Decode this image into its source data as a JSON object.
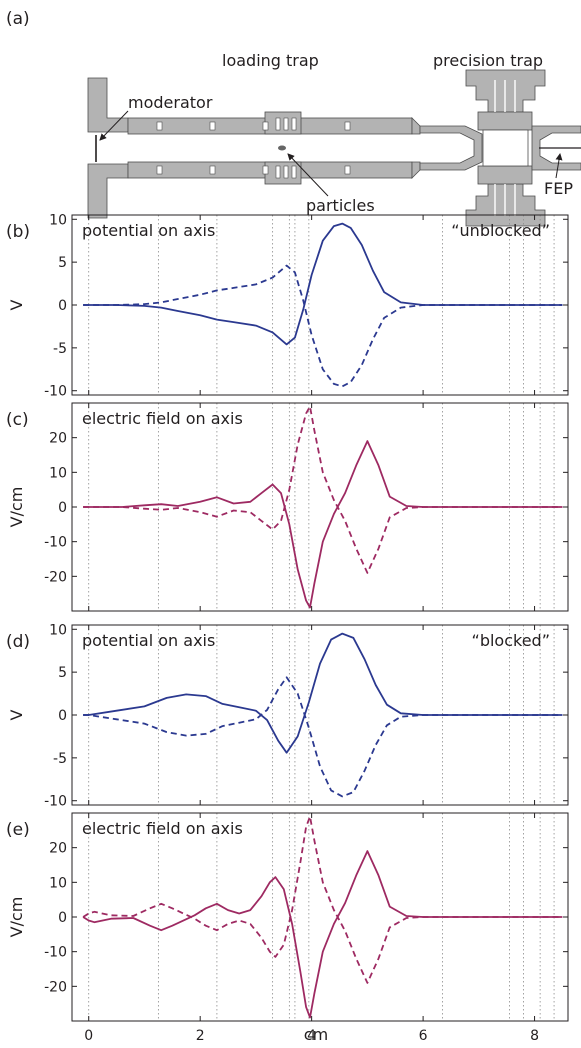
{
  "panel_a": {
    "label": "(a)",
    "loading_trap_label": "loading trap",
    "precision_trap_label": "precision trap",
    "moderator_label": "moderator",
    "particles_label": "particles",
    "fep_label": "FEP"
  },
  "colors": {
    "potential": "#2b3990",
    "field": "#9e2a62",
    "electrode": "#b3b3b3",
    "edge": "#4d4d4d"
  },
  "x_axis": {
    "label": "cm",
    "range": [
      -0.3,
      8.6
    ],
    "ticks": [
      0,
      2,
      4,
      6,
      8
    ],
    "tick_labels": [
      "0",
      "2",
      "4",
      "6",
      "8"
    ]
  },
  "electrode_boundaries_cm": [
    0.0,
    1.25,
    2.3,
    3.3,
    3.6,
    3.7,
    3.95,
    6.35,
    7.55,
    7.8,
    8.1,
    8.35
  ],
  "chart_data": [
    {
      "id": "b",
      "panel_label": "(b)",
      "type": "line",
      "title": "potential on axis",
      "annotation": "“unblocked”",
      "ylabel": "V",
      "ylim": [
        -10.5,
        10.5
      ],
      "yticks": [
        -10,
        -5,
        0,
        5,
        10
      ],
      "ytick_labels": [
        "-10",
        "-5",
        "0",
        "5",
        "10"
      ],
      "color_key": "potential",
      "series": [
        {
          "style": "solid",
          "x": [
            -0.1,
            0.5,
            1.0,
            1.3,
            1.6,
            2.0,
            2.3,
            2.6,
            3.0,
            3.3,
            3.55,
            3.7,
            3.85,
            4.0,
            4.2,
            4.4,
            4.55,
            4.7,
            4.9,
            5.1,
            5.3,
            5.6,
            6.0,
            7.0,
            8.5
          ],
          "y": [
            0,
            0,
            -0.1,
            -0.3,
            -0.7,
            -1.2,
            -1.7,
            -2.0,
            -2.4,
            -3.2,
            -4.6,
            -3.8,
            -0.5,
            3.5,
            7.5,
            9.2,
            9.5,
            9.0,
            7.0,
            4.0,
            1.5,
            0.3,
            0,
            0,
            0
          ]
        },
        {
          "style": "dashed",
          "x": [
            -0.1,
            0.5,
            1.0,
            1.3,
            1.6,
            2.0,
            2.3,
            2.6,
            3.0,
            3.3,
            3.55,
            3.7,
            3.85,
            4.0,
            4.2,
            4.4,
            4.55,
            4.7,
            4.9,
            5.1,
            5.3,
            5.6,
            6.0,
            7.0,
            8.5
          ],
          "y": [
            0,
            0,
            0.1,
            0.3,
            0.7,
            1.2,
            1.7,
            2.0,
            2.4,
            3.2,
            4.6,
            3.8,
            0.5,
            -3.5,
            -7.5,
            -9.2,
            -9.5,
            -9.0,
            -7.0,
            -4.0,
            -1.5,
            -0.3,
            0,
            0,
            0
          ]
        }
      ]
    },
    {
      "id": "c",
      "panel_label": "(c)",
      "type": "line",
      "title": "electric field on axis",
      "annotation": "",
      "ylabel": "V/cm",
      "ylim": [
        -30,
        30
      ],
      "yticks": [
        -20,
        -10,
        0,
        10,
        20
      ],
      "ytick_labels": [
        "-20",
        "-10",
        "0",
        "10",
        "20"
      ],
      "color_key": "field",
      "series": [
        {
          "style": "solid",
          "x": [
            -0.1,
            0.6,
            1.0,
            1.3,
            1.6,
            2.0,
            2.3,
            2.6,
            2.9,
            3.1,
            3.3,
            3.45,
            3.6,
            3.75,
            3.9,
            3.97,
            4.05,
            4.2,
            4.4,
            4.6,
            4.8,
            5.0,
            5.2,
            5.4,
            5.7,
            6.0,
            7.0,
            8.5
          ],
          "y": [
            0,
            0,
            0.5,
            0.8,
            0.3,
            1.5,
            2.8,
            1.0,
            1.5,
            4.0,
            6.5,
            4.0,
            -5.0,
            -18.0,
            -27.0,
            -29.0,
            -22.0,
            -10.0,
            -2.0,
            4.0,
            12.0,
            19.0,
            12.0,
            3.0,
            0.3,
            0,
            0,
            0
          ]
        },
        {
          "style": "dashed",
          "x": [
            -0.1,
            0.6,
            1.0,
            1.3,
            1.6,
            2.0,
            2.3,
            2.6,
            2.9,
            3.1,
            3.3,
            3.45,
            3.6,
            3.75,
            3.9,
            3.97,
            4.05,
            4.2,
            4.4,
            4.6,
            4.8,
            5.0,
            5.2,
            5.4,
            5.7,
            6.0,
            7.0,
            8.5
          ],
          "y": [
            0,
            0,
            -0.5,
            -0.8,
            -0.3,
            -1.5,
            -2.8,
            -1.0,
            -1.5,
            -4.0,
            -6.5,
            -4.0,
            5.0,
            18.0,
            27.0,
            29.0,
            22.0,
            10.0,
            2.0,
            -4.0,
            -12.0,
            -19.0,
            -12.0,
            -3.0,
            -0.3,
            0,
            0,
            0
          ]
        }
      ]
    },
    {
      "id": "d",
      "panel_label": "(d)",
      "type": "line",
      "title": "potential on axis",
      "annotation": "“blocked”",
      "ylabel": "V",
      "ylim": [
        -10.5,
        10.5
      ],
      "yticks": [
        -10,
        -5,
        0,
        5,
        10
      ],
      "ytick_labels": [
        "-10",
        "-5",
        "0",
        "5",
        "10"
      ],
      "color_key": "potential",
      "series": [
        {
          "style": "solid",
          "x": [
            -0.1,
            0.0,
            0.5,
            1.0,
            1.4,
            1.75,
            2.1,
            2.4,
            2.7,
            3.0,
            3.2,
            3.4,
            3.55,
            3.75,
            3.95,
            4.15,
            4.35,
            4.55,
            4.75,
            4.95,
            5.15,
            5.35,
            5.6,
            6.0,
            7.0,
            8.5
          ],
          "y": [
            0,
            0,
            0.5,
            1.0,
            2.0,
            2.4,
            2.2,
            1.3,
            0.9,
            0.5,
            -0.6,
            -3.0,
            -4.4,
            -2.5,
            1.5,
            6.0,
            8.8,
            9.5,
            9.0,
            6.5,
            3.5,
            1.2,
            0.2,
            0,
            0,
            0
          ]
        },
        {
          "style": "dashed",
          "x": [
            -0.1,
            0.0,
            0.5,
            1.0,
            1.4,
            1.75,
            2.1,
            2.4,
            2.7,
            3.0,
            3.2,
            3.4,
            3.55,
            3.75,
            3.95,
            4.15,
            4.35,
            4.55,
            4.75,
            4.95,
            5.15,
            5.35,
            5.6,
            6.0,
            7.0,
            8.5
          ],
          "y": [
            0,
            0,
            -0.5,
            -1.0,
            -2.0,
            -2.4,
            -2.2,
            -1.3,
            -0.9,
            -0.5,
            0.6,
            3.0,
            4.4,
            2.5,
            -1.5,
            -6.0,
            -8.8,
            -9.5,
            -9.0,
            -6.5,
            -3.5,
            -1.2,
            -0.2,
            0,
            0,
            0
          ]
        }
      ]
    },
    {
      "id": "e",
      "panel_label": "(e)",
      "type": "line",
      "title": "electric field on axis",
      "annotation": "",
      "ylabel": "V/cm",
      "ylim": [
        -30,
        30
      ],
      "yticks": [
        -20,
        -10,
        0,
        10,
        20
      ],
      "ytick_labels": [
        "-20",
        "-10",
        "0",
        "10",
        "20"
      ],
      "color_key": "field",
      "series": [
        {
          "style": "solid",
          "x": [
            -0.1,
            0.0,
            0.1,
            0.4,
            0.8,
            1.1,
            1.3,
            1.5,
            1.9,
            2.1,
            2.3,
            2.5,
            2.7,
            2.9,
            3.1,
            3.25,
            3.35,
            3.5,
            3.65,
            3.8,
            3.9,
            3.97,
            4.05,
            4.2,
            4.4,
            4.6,
            4.8,
            5.0,
            5.2,
            5.4,
            5.7,
            6.0,
            7.0,
            8.5
          ],
          "y": [
            0,
            -1.0,
            -1.5,
            -0.5,
            -0.3,
            -2.5,
            -3.8,
            -2.5,
            0.5,
            2.5,
            3.8,
            2.0,
            1.0,
            2.0,
            6.0,
            10.0,
            11.5,
            8.0,
            -2.0,
            -16.0,
            -26.0,
            -29.0,
            -22.0,
            -10.0,
            -2.0,
            4.0,
            12.0,
            19.0,
            12.0,
            3.0,
            0.3,
            0,
            0,
            0
          ]
        },
        {
          "style": "dashed",
          "x": [
            -0.1,
            0.0,
            0.1,
            0.4,
            0.8,
            1.1,
            1.3,
            1.5,
            1.9,
            2.1,
            2.3,
            2.5,
            2.7,
            2.9,
            3.1,
            3.25,
            3.35,
            3.5,
            3.65,
            3.8,
            3.9,
            3.97,
            4.05,
            4.2,
            4.4,
            4.6,
            4.8,
            5.0,
            5.2,
            5.4,
            5.7,
            6.0,
            7.0,
            8.5
          ],
          "y": [
            0,
            1.0,
            1.5,
            0.5,
            0.3,
            2.5,
            3.8,
            2.5,
            -0.5,
            -2.5,
            -3.8,
            -2.0,
            -1.0,
            -2.0,
            -6.0,
            -10.0,
            -11.5,
            -8.0,
            2.0,
            16.0,
            26.0,
            29.0,
            22.0,
            10.0,
            2.0,
            -4.0,
            -12.0,
            -19.0,
            -12.0,
            -3.0,
            -0.3,
            0,
            0,
            0
          ]
        }
      ]
    }
  ]
}
